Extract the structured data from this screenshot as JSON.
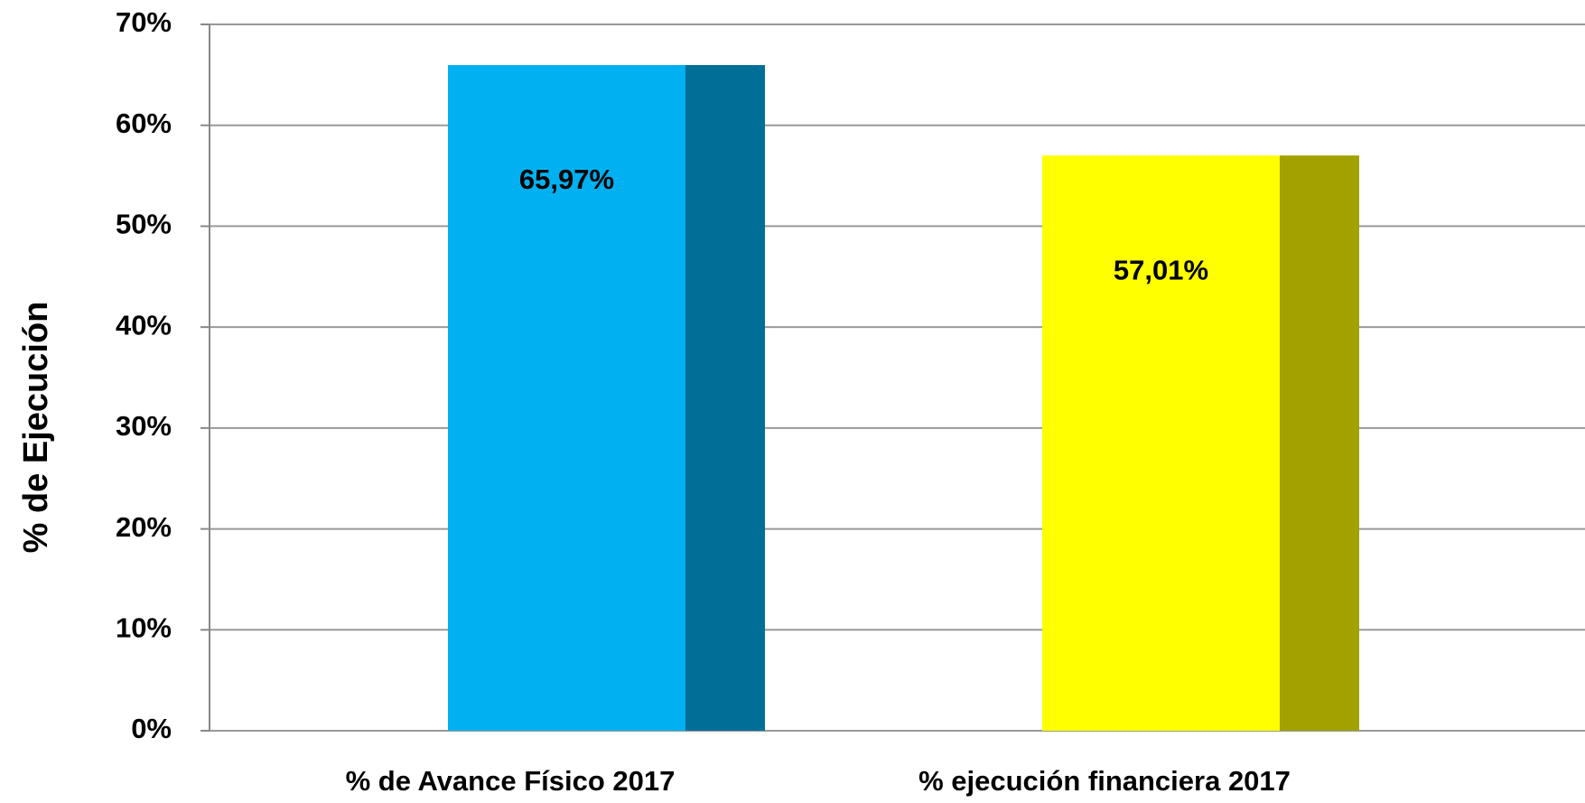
{
  "chart_data": {
    "type": "bar",
    "y_label": "% de Ejecución",
    "categories": [
      "% de Avance Físico 2017",
      "% ejecución financiera 2017"
    ],
    "values": [
      65.97,
      57.01
    ],
    "value_labels": [
      "65,97%",
      "57,01%"
    ],
    "colors": [
      "#00b0f0",
      "#ffff00"
    ],
    "ylim": [
      0,
      70
    ],
    "yticks": [
      {
        "value": 0,
        "label": "0%"
      },
      {
        "value": 10,
        "label": "10%"
      },
      {
        "value": 20,
        "label": "20%"
      },
      {
        "value": 30,
        "label": "30%"
      },
      {
        "value": 40,
        "label": "40%"
      },
      {
        "value": 50,
        "label": "50%"
      },
      {
        "value": 60,
        "label": "60%"
      },
      {
        "value": 70,
        "label": "70%"
      }
    ],
    "grid": true
  }
}
